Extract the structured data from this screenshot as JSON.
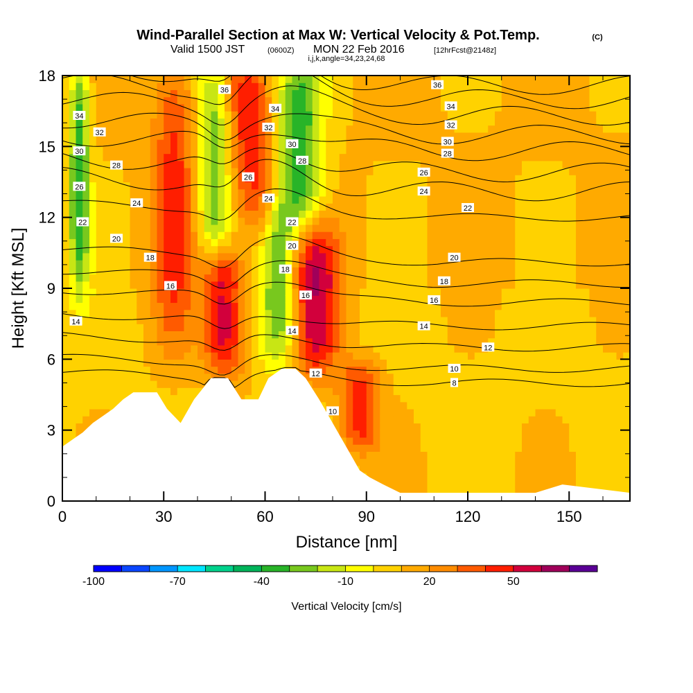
{
  "title": {
    "main": "Wind-Parallel Section at Max W: Vertical Velocity & Pot.Temp.",
    "copyright": "(C)",
    "valid_prefix": "Valid 1500 JST",
    "valid_utc": "(0600Z)",
    "valid_date": "MON 22 Feb 2016",
    "forecast": "[12hrFcst@2148z]",
    "indices": "i,j,k,angle=34,23,24,68"
  },
  "chart_data": {
    "type": "heatmap",
    "xlabel": "Distance [nm]",
    "ylabel": "Height [Kft MSL]",
    "xlim": [
      0,
      168
    ],
    "ylim": [
      0,
      18
    ],
    "xticks": [
      0,
      30,
      60,
      90,
      120,
      150
    ],
    "yticks": [
      0,
      3,
      6,
      9,
      12,
      15,
      18
    ],
    "colorbar": {
      "label": "Vertical Velocity [cm/s]",
      "tick_labels": [
        "-100",
        "-70",
        "-40",
        "-10",
        "20",
        "50"
      ],
      "tick_values": [
        -100,
        -70,
        -40,
        -10,
        20,
        50
      ],
      "bins": [
        -100,
        -90,
        -80,
        -70,
        -60,
        -50,
        -40,
        -30,
        -20,
        -10,
        0,
        10,
        20,
        30,
        40,
        50,
        60,
        70
      ],
      "colors": [
        "#0000ff",
        "#0a46ff",
        "#0096ff",
        "#00e6ff",
        "#00d28c",
        "#00b45a",
        "#28b428",
        "#78c81e",
        "#c8e614",
        "#ffff00",
        "#ffd200",
        "#ffaa00",
        "#ff8c00",
        "#ff5a00",
        "#ff1e00",
        "#d2003c",
        "#a0005a",
        "#5a0096"
      ]
    },
    "terrain_profile": {
      "x": [
        0,
        3,
        6,
        9,
        12,
        15,
        18,
        21,
        28,
        31,
        35,
        39,
        44,
        49,
        53,
        58,
        61,
        65,
        69,
        72,
        76,
        80,
        84,
        88,
        91,
        95,
        100,
        140,
        148,
        168
      ],
      "height": [
        2.3,
        2.6,
        2.9,
        3.3,
        3.6,
        3.9,
        4.3,
        4.6,
        4.6,
        3.9,
        3.3,
        4.3,
        5.2,
        5.2,
        4.3,
        4.3,
        5.2,
        5.6,
        5.6,
        5.2,
        4.3,
        3.3,
        2.3,
        1.3,
        1.0,
        0.7,
        0.35,
        0.35,
        0.7,
        0.35
      ]
    },
    "velocity_features": [
      {
        "x": 5,
        "z_min": 9.5,
        "z_max": 18,
        "width": 3,
        "w": -40
      },
      {
        "x": 33,
        "z_min": 7,
        "z_max": 18,
        "width": 6,
        "w": 40
      },
      {
        "x": 45,
        "z_min": 11,
        "z_max": 18,
        "width": 5,
        "w": -30
      },
      {
        "x": 48,
        "z_min": 6,
        "z_max": 10,
        "width": 6,
        "w": 55
      },
      {
        "x": 56,
        "z_min": 12,
        "z_max": 18,
        "width": 7,
        "w": 45
      },
      {
        "x": 64,
        "z_min": 6.5,
        "z_max": 12,
        "width": 5,
        "w": -30
      },
      {
        "x": 70,
        "z_min": 12,
        "z_max": 18,
        "width": 7,
        "w": -40
      },
      {
        "x": 75,
        "z_min": 6,
        "z_max": 11,
        "width": 7,
        "w": 55
      },
      {
        "x": 88,
        "z_min": 2.8,
        "z_max": 5.2,
        "width": 6,
        "w": 45
      }
    ],
    "theta_contours": [
      {
        "label": "8",
        "z_right": 5.0
      },
      {
        "label": "10",
        "z_right": 5.6
      },
      {
        "label": "12",
        "z_right": 6.5
      },
      {
        "label": "14",
        "z_right": 7.4
      },
      {
        "label": "16",
        "z_right": 8.4
      },
      {
        "label": "18",
        "z_right": 9.2
      },
      {
        "label": "20",
        "z_right": 10.1
      },
      {
        "label": "22",
        "z_right": 12.0
      },
      {
        "label": "24",
        "z_right": 13.1
      },
      {
        "label": "26",
        "z_right": 13.9
      },
      {
        "label": "28",
        "z_right": 14.8
      },
      {
        "label": "30",
        "z_right": 15.5
      },
      {
        "label": "32",
        "z_right": 16.3
      },
      {
        "label": "34",
        "z_right": 17.0
      },
      {
        "label": "36",
        "z_right": 17.6
      }
    ],
    "contour_labels": [
      {
        "text": "36",
        "x": 48,
        "z": 17.4
      },
      {
        "text": "36",
        "x": 111,
        "z": 17.6
      },
      {
        "text": "34",
        "x": 5,
        "z": 16.3
      },
      {
        "text": "34",
        "x": 63,
        "z": 16.6
      },
      {
        "text": "34",
        "x": 115,
        "z": 16.7
      },
      {
        "text": "32",
        "x": 11,
        "z": 15.6
      },
      {
        "text": "32",
        "x": 61,
        "z": 15.8
      },
      {
        "text": "32",
        "x": 115,
        "z": 15.9
      },
      {
        "text": "30",
        "x": 5,
        "z": 14.8
      },
      {
        "text": "30",
        "x": 68,
        "z": 15.1
      },
      {
        "text": "30",
        "x": 114,
        "z": 15.2
      },
      {
        "text": "28",
        "x": 16,
        "z": 14.2
      },
      {
        "text": "28",
        "x": 71,
        "z": 14.4
      },
      {
        "text": "28",
        "x": 114,
        "z": 14.7
      },
      {
        "text": "26",
        "x": 5,
        "z": 13.3
      },
      {
        "text": "26",
        "x": 55,
        "z": 13.7
      },
      {
        "text": "26",
        "x": 107,
        "z": 13.9
      },
      {
        "text": "24",
        "x": 22,
        "z": 12.6
      },
      {
        "text": "24",
        "x": 61,
        "z": 12.8
      },
      {
        "text": "24",
        "x": 107,
        "z": 13.1
      },
      {
        "text": "22",
        "x": 6,
        "z": 11.8
      },
      {
        "text": "22",
        "x": 68,
        "z": 11.8
      },
      {
        "text": "22",
        "x": 120,
        "z": 12.4
      },
      {
        "text": "20",
        "x": 16,
        "z": 11.1
      },
      {
        "text": "20",
        "x": 68,
        "z": 10.8
      },
      {
        "text": "20",
        "x": 116,
        "z": 10.3
      },
      {
        "text": "18",
        "x": 26,
        "z": 10.3
      },
      {
        "text": "18",
        "x": 66,
        "z": 9.8
      },
      {
        "text": "18",
        "x": 113,
        "z": 9.3
      },
      {
        "text": "16",
        "x": 32,
        "z": 9.1
      },
      {
        "text": "16",
        "x": 72,
        "z": 8.7
      },
      {
        "text": "16",
        "x": 110,
        "z": 8.5
      },
      {
        "text": "14",
        "x": 4,
        "z": 7.6
      },
      {
        "text": "14",
        "x": 68,
        "z": 7.2
      },
      {
        "text": "14",
        "x": 107,
        "z": 7.4
      },
      {
        "text": "12",
        "x": 75,
        "z": 5.4
      },
      {
        "text": "12",
        "x": 126,
        "z": 6.5
      },
      {
        "text": "10",
        "x": 80,
        "z": 3.8
      },
      {
        "text": "10",
        "x": 116,
        "z": 5.6
      },
      {
        "text": "8",
        "x": 116,
        "z": 5.0
      }
    ]
  }
}
